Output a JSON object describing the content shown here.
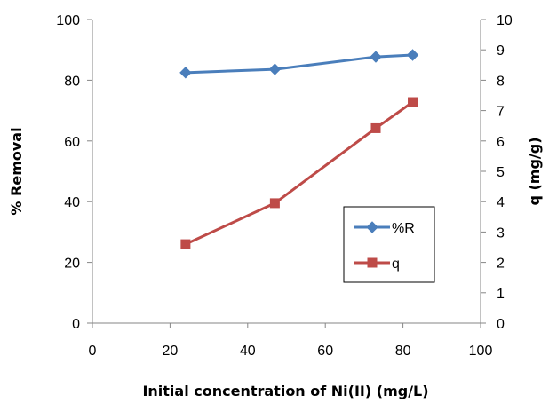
{
  "chart_data": {
    "type": "line",
    "title": "",
    "xlabel": "Initial concentration of Ni(II) (mg/L)",
    "ylabel": "% Removal",
    "y2label": "q (mg/g)",
    "xlim": [
      0,
      100
    ],
    "ylim": [
      0,
      100
    ],
    "y2lim": [
      0,
      10
    ],
    "x_ticks": [
      "0",
      "20",
      "40",
      "60",
      "80",
      "100"
    ],
    "y_ticks": [
      "0",
      "20",
      "40",
      "60",
      "80",
      "100"
    ],
    "y2_ticks": [
      "0",
      "1",
      "2",
      "3",
      "4",
      "5",
      "6",
      "7",
      "8",
      "9",
      "10"
    ],
    "grid": false,
    "legend_position": "right",
    "series": [
      {
        "name": "%R",
        "axis": "left",
        "color": "#4A7EBB",
        "marker": "diamond",
        "x": [
          24,
          47,
          73,
          82.5
        ],
        "y": [
          82.5,
          83.6,
          87.7,
          88.3
        ]
      },
      {
        "name": "q",
        "axis": "right",
        "color": "#BE4B48",
        "marker": "square",
        "x": [
          24,
          47,
          73,
          82.5
        ],
        "y": [
          2.6,
          3.95,
          6.42,
          7.28
        ]
      }
    ]
  }
}
